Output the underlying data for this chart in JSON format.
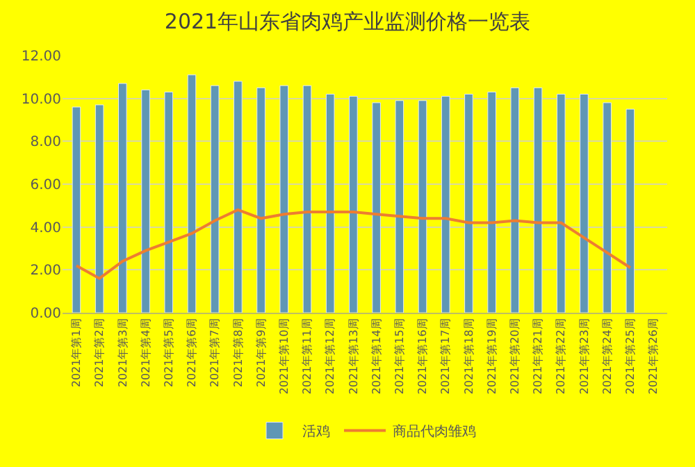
{
  "chart_data": {
    "type": "bar",
    "title": "2021年山东省肉鸡产业监测价格一览表",
    "categories": [
      "2021年第1周",
      "2021年第2周",
      "2021年第3周",
      "2021年第4周",
      "2021年第5周",
      "2021年第6周",
      "2021年第7周",
      "2021年第8周",
      "2021年第9周",
      "2021年第10周",
      "2021年第11周",
      "2021年第12周",
      "2021年第13周",
      "2021年第14周",
      "2021年第15周",
      "2021年第16周",
      "2021年第17周",
      "2021年第18周",
      "2021年第19周",
      "2021年第20周",
      "2021年第21周",
      "2021年第22周",
      "2021年第23周",
      "2021年第24周",
      "2021年第25周",
      "2021年第26周"
    ],
    "series": [
      {
        "name": "活鸡",
        "color": "#5f97b5",
        "values": [
          9.6,
          9.7,
          10.7,
          10.4,
          10.3,
          11.1,
          10.6,
          10.8,
          10.5,
          10.6,
          10.6,
          10.2,
          10.1,
          9.8,
          9.9,
          9.9,
          10.1,
          10.2,
          10.3,
          10.5,
          10.5,
          10.2,
          10.2,
          9.8,
          9.5,
          null
        ]
      },
      {
        "name": "商品代肉雏鸡",
        "type": "line",
        "color": "#ed7d31",
        "values": [
          2.2,
          1.6,
          2.4,
          2.9,
          3.3,
          3.7,
          4.3,
          4.8,
          4.4,
          4.6,
          4.7,
          4.7,
          4.7,
          4.6,
          4.5,
          4.4,
          4.4,
          4.2,
          4.2,
          4.3,
          4.2,
          4.2,
          3.5,
          2.8,
          2.1,
          null
        ]
      }
    ],
    "ylim": [
      0,
      12
    ],
    "yticks": [
      {
        "value": 0,
        "label": "0.00"
      },
      {
        "value": 2,
        "label": "2.00"
      },
      {
        "value": 4,
        "label": "4.00"
      },
      {
        "value": 6,
        "label": "6.00"
      },
      {
        "value": 8,
        "label": "8.00"
      },
      {
        "value": 10,
        "label": "10.00"
      },
      {
        "value": 12,
        "label": "12.00"
      }
    ],
    "grid": "y",
    "legend": "bottom",
    "marker": "none",
    "line_style": "solid"
  }
}
